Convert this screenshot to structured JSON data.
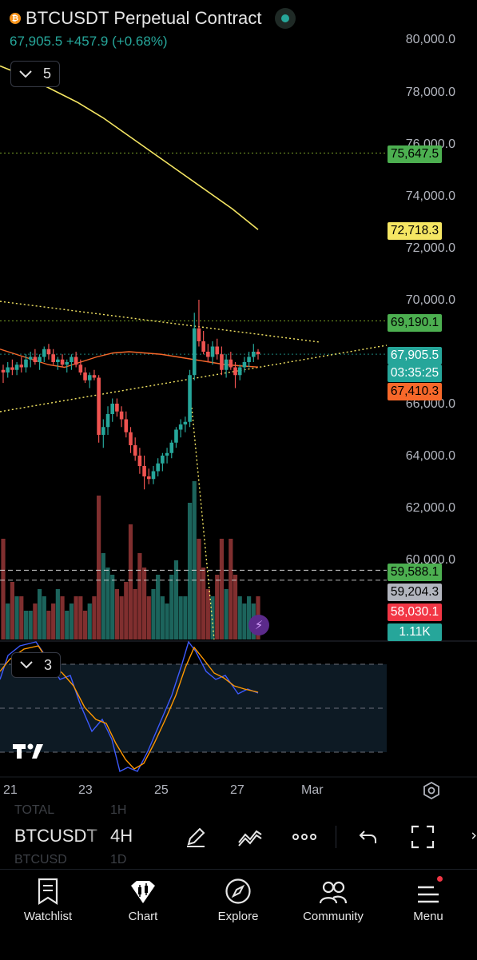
{
  "header": {
    "coin_badge": "₿",
    "title": "BTCUSDT Perpetual Contract",
    "last_price": "67,905.5",
    "change": "+457.9",
    "change_pct": "(+0.68%)"
  },
  "indicator_toggles": {
    "main_count": "5",
    "sub_count": "3"
  },
  "price_axis": [
    "80,000.0",
    "78,000.0",
    "76,000.0",
    "74,000.0",
    "72,000.0",
    "70,000.0",
    "66,000.0",
    "64,000.0",
    "62,000.0",
    "60,000.0"
  ],
  "price_labels": [
    {
      "text": "75,647.5",
      "bg": "#4caf50",
      "fg": "#000000"
    },
    {
      "text": "72,718.3",
      "bg": "#f5e663",
      "fg": "#000000"
    },
    {
      "text": "69,190.1",
      "bg": "#4caf50",
      "fg": "#000000"
    },
    {
      "text": "67,905.5",
      "bg": "#26a69a",
      "fg": "#ffffff"
    },
    {
      "text": "03:35:25",
      "bg": "#26a69a",
      "fg": "#ffffff"
    },
    {
      "text": "67,410.3",
      "bg": "#f7682a",
      "fg": "#000000"
    },
    {
      "text": "59,588.1",
      "bg": "#4caf50",
      "fg": "#000000"
    },
    {
      "text": "59,204.3",
      "bg": "#b2b5be",
      "fg": "#000000"
    },
    {
      "text": "58,030.1",
      "bg": "#f23645",
      "fg": "#ffffff"
    },
    {
      "text": "1.11K",
      "bg": "#26a69a",
      "fg": "#ffffff"
    }
  ],
  "time_axis": [
    "21",
    "23",
    "25",
    "27",
    "Mar"
  ],
  "colors": {
    "up": "#26a69a",
    "down": "#ef5350",
    "ma_orange": "#f7682a",
    "ma_yellow": "#f5e663"
  },
  "toolbar": {
    "symbol": "BTCUSDT",
    "symbol_faded": "TOTAL",
    "symbol_faded_2": "BTCUSD",
    "interval": "4H",
    "interval_above": "1H",
    "interval_below": "1D"
  },
  "nav": [
    {
      "label": "Watchlist",
      "icon": "watchlist-icon"
    },
    {
      "label": "Chart",
      "icon": "chart-icon"
    },
    {
      "label": "Explore",
      "icon": "explore-icon"
    },
    {
      "label": "Community",
      "icon": "community-icon"
    },
    {
      "label": "Menu",
      "icon": "menu-icon"
    }
  ],
  "chart_data": {
    "type": "candlestick",
    "symbol": "BTCUSDT",
    "interval": "4H",
    "ylim": [
      57500,
      80600
    ],
    "candles": [
      [
        67300,
        67500,
        66800,
        67200
      ],
      [
        67200,
        67600,
        67000,
        67400
      ],
      [
        67400,
        67700,
        67100,
        67300
      ],
      [
        67300,
        67600,
        67100,
        67500
      ],
      [
        67500,
        67800,
        67200,
        67400
      ],
      [
        67400,
        67900,
        67200,
        67700
      ],
      [
        67700,
        68000,
        67400,
        67800
      ],
      [
        67800,
        68100,
        67500,
        67600
      ],
      [
        67600,
        67900,
        67300,
        67800
      ],
      [
        67800,
        68200,
        67600,
        68100
      ],
      [
        68100,
        68300,
        67700,
        67900
      ],
      [
        67900,
        68100,
        67500,
        67600
      ],
      [
        67600,
        67800,
        67300,
        67700
      ],
      [
        67700,
        67900,
        67400,
        67500
      ],
      [
        67500,
        67700,
        67200,
        67600
      ],
      [
        67600,
        67900,
        67300,
        67800
      ],
      [
        67800,
        68000,
        67400,
        67500
      ],
      [
        67500,
        67700,
        67100,
        67200
      ],
      [
        67200,
        67400,
        66800,
        66900
      ],
      [
        66900,
        67200,
        66600,
        67100
      ],
      [
        67100,
        67300,
        66900,
        67000
      ],
      [
        67000,
        67100,
        64500,
        64800
      ],
      [
        64800,
        65400,
        64300,
        65100
      ],
      [
        65100,
        65900,
        64800,
        65600
      ],
      [
        65600,
        66200,
        65300,
        66000
      ],
      [
        66000,
        66200,
        65500,
        65700
      ],
      [
        65700,
        65900,
        65100,
        65400
      ],
      [
        65400,
        65700,
        64700,
        64900
      ],
      [
        64900,
        65100,
        64100,
        64400
      ],
      [
        64400,
        64700,
        63800,
        64000
      ],
      [
        64000,
        64300,
        63300,
        63600
      ],
      [
        63600,
        64000,
        62700,
        63200
      ],
      [
        63200,
        63500,
        62900,
        63100
      ],
      [
        63100,
        63600,
        62900,
        63400
      ],
      [
        63400,
        63900,
        63200,
        63700
      ],
      [
        63700,
        64100,
        63400,
        64000
      ],
      [
        64000,
        64300,
        63700,
        64100
      ],
      [
        64100,
        64600,
        63900,
        64500
      ],
      [
        64500,
        65100,
        64300,
        65000
      ],
      [
        65000,
        65400,
        64700,
        65200
      ],
      [
        65200,
        65500,
        64900,
        65300
      ],
      [
        65300,
        67300,
        65100,
        67100
      ],
      [
        67100,
        69500,
        66900,
        68900
      ],
      [
        68900,
        70000,
        68200,
        68400
      ],
      [
        68400,
        68800,
        67900,
        68000
      ],
      [
        68000,
        68300,
        67600,
        67800
      ],
      [
        67800,
        68400,
        67500,
        68200
      ],
      [
        68200,
        68500,
        67700,
        67900
      ],
      [
        67900,
        68200,
        67100,
        67300
      ],
      [
        67300,
        67900,
        67000,
        67700
      ],
      [
        67700,
        68000,
        67300,
        67400
      ],
      [
        67400,
        67600,
        66600,
        67100
      ],
      [
        67100,
        67500,
        66900,
        67400
      ],
      [
        67400,
        67800,
        67200,
        67600
      ],
      [
        67600,
        68000,
        67400,
        67800
      ],
      [
        67800,
        68300,
        67600,
        68000
      ],
      [
        68000,
        68100,
        67700,
        67905
      ]
    ],
    "moving_averages": [
      {
        "name": "MA orange",
        "color": "#f7682a",
        "values": [
          68100,
          67900,
          67700,
          67500,
          67400,
          67600,
          67800,
          67950,
          68000,
          67950,
          67900,
          67800,
          67700,
          67600,
          67500,
          67450,
          67410
        ]
      },
      {
        "name": "MA yellow",
        "color": "#f5e663",
        "values": [
          79000,
          78600,
          78100,
          77600,
          77000,
          76300,
          75600,
          74900,
          74200,
          73500,
          72700
        ]
      }
    ],
    "horizontal_lines": [
      75647.5,
      69190.1,
      67905.5,
      59588.1,
      59204.3
    ],
    "volume": {
      "last": "1.11K"
    }
  }
}
